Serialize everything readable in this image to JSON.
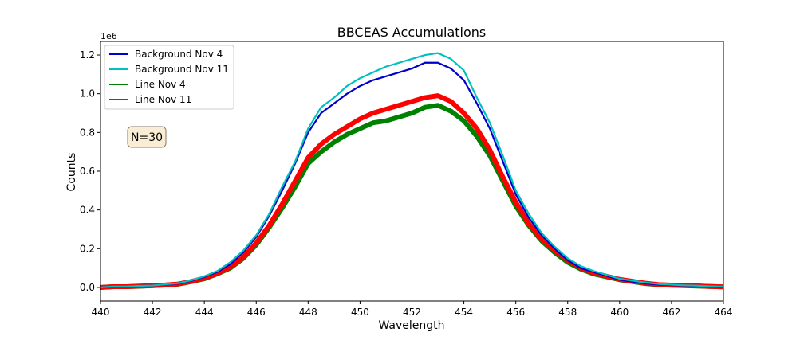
{
  "chart_data": {
    "type": "line",
    "title": "BBCEAS Accumulations",
    "xlabel": "Wavelength",
    "ylabel": "Counts",
    "y_offset_text": "1e6",
    "xlim": [
      440,
      464
    ],
    "ylim": [
      -0.07,
      1.27
    ],
    "xticks": [
      440,
      442,
      444,
      446,
      448,
      450,
      452,
      454,
      456,
      458,
      460,
      462,
      464
    ],
    "yticks": [
      0.0,
      0.2,
      0.4,
      0.6,
      0.8,
      1.0,
      1.2
    ],
    "ytick_labels": [
      "0.0",
      "0.2",
      "0.4",
      "0.6",
      "0.8",
      "1.0",
      "1.2"
    ],
    "grid": false,
    "legend_placement": "upper-left",
    "annotation": "N=30",
    "x": [
      440,
      440.5,
      441,
      441.5,
      442,
      442.5,
      443,
      443.5,
      444,
      444.5,
      445,
      445.5,
      446,
      446.5,
      447,
      447.5,
      448,
      448.5,
      449,
      449.5,
      450,
      450.5,
      451,
      451.5,
      452,
      452.5,
      453,
      453.5,
      454,
      454.5,
      455,
      455.5,
      456,
      456.5,
      457,
      457.5,
      458,
      458.5,
      459,
      459.5,
      460,
      460.5,
      461,
      461.5,
      462,
      462.5,
      463,
      463.5,
      464
    ],
    "series": [
      {
        "name": "Background Nov 4",
        "color": "#0000cc",
        "values": [
          0.0,
          0.005,
          0.005,
          0.008,
          0.01,
          0.015,
          0.02,
          0.035,
          0.055,
          0.08,
          0.12,
          0.18,
          0.26,
          0.37,
          0.5,
          0.64,
          0.8,
          0.9,
          0.95,
          1.0,
          1.04,
          1.07,
          1.09,
          1.11,
          1.13,
          1.16,
          1.16,
          1.13,
          1.07,
          0.95,
          0.82,
          0.65,
          0.48,
          0.36,
          0.27,
          0.2,
          0.14,
          0.1,
          0.08,
          0.06,
          0.04,
          0.03,
          0.02,
          0.015,
          0.012,
          0.01,
          0.008,
          0.005,
          0.003
        ]
      },
      {
        "name": "Background Nov 11",
        "color": "#00c0c0",
        "values": [
          0.0,
          0.005,
          0.005,
          0.008,
          0.01,
          0.016,
          0.022,
          0.037,
          0.058,
          0.085,
          0.13,
          0.19,
          0.27,
          0.38,
          0.52,
          0.65,
          0.82,
          0.93,
          0.98,
          1.04,
          1.08,
          1.11,
          1.14,
          1.16,
          1.18,
          1.2,
          1.21,
          1.18,
          1.12,
          0.98,
          0.85,
          0.68,
          0.5,
          0.38,
          0.28,
          0.21,
          0.15,
          0.11,
          0.085,
          0.065,
          0.045,
          0.035,
          0.025,
          0.018,
          0.014,
          0.011,
          0.009,
          0.006,
          0.004
        ]
      },
      {
        "name": "Line Nov 4",
        "color": "#008000",
        "values": [
          0.0,
          0.004,
          0.004,
          0.006,
          0.009,
          0.012,
          0.017,
          0.03,
          0.045,
          0.07,
          0.1,
          0.15,
          0.22,
          0.31,
          0.41,
          0.52,
          0.64,
          0.7,
          0.75,
          0.79,
          0.82,
          0.85,
          0.86,
          0.88,
          0.9,
          0.93,
          0.94,
          0.91,
          0.86,
          0.78,
          0.68,
          0.55,
          0.42,
          0.32,
          0.24,
          0.18,
          0.13,
          0.095,
          0.07,
          0.055,
          0.04,
          0.03,
          0.02,
          0.014,
          0.011,
          0.009,
          0.007,
          0.005,
          0.003
        ]
      },
      {
        "name": "Line Nov 11",
        "color": "#ff0000",
        "values": [
          0.0,
          0.004,
          0.004,
          0.007,
          0.009,
          0.013,
          0.018,
          0.031,
          0.048,
          0.072,
          0.105,
          0.155,
          0.23,
          0.32,
          0.43,
          0.55,
          0.67,
          0.74,
          0.79,
          0.83,
          0.87,
          0.9,
          0.92,
          0.94,
          0.96,
          0.98,
          0.99,
          0.96,
          0.9,
          0.82,
          0.71,
          0.57,
          0.44,
          0.33,
          0.25,
          0.19,
          0.14,
          0.1,
          0.075,
          0.058,
          0.042,
          0.032,
          0.022,
          0.015,
          0.012,
          0.01,
          0.008,
          0.005,
          0.003
        ]
      }
    ]
  }
}
